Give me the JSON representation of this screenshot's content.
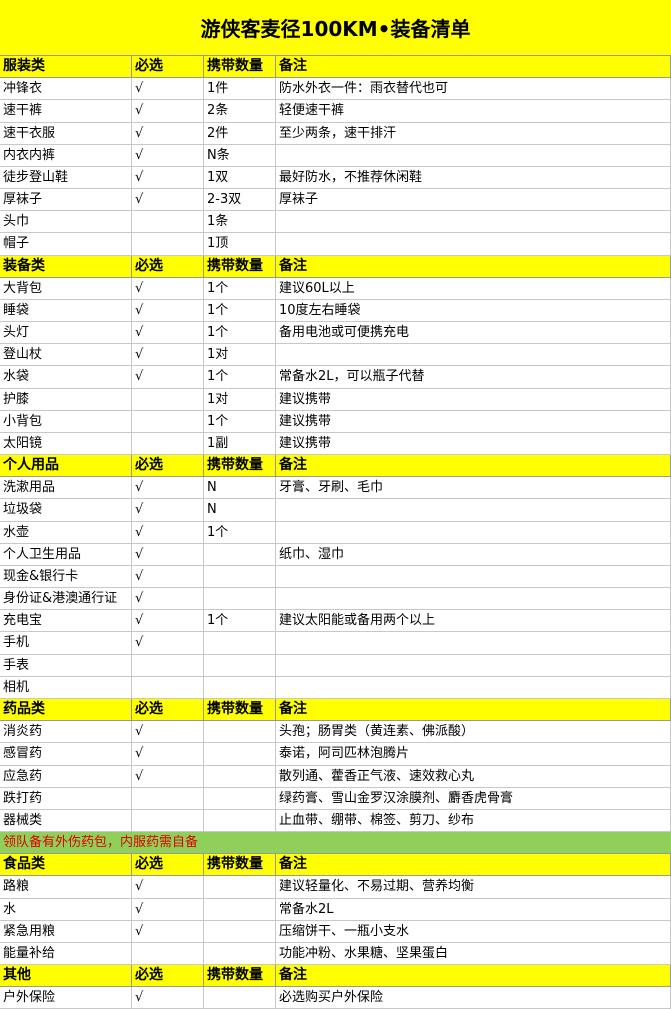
{
  "title": "游侠客麦径100KM•装备清单",
  "sections": [
    {
      "header": [
        "服装类",
        "必选",
        "携带数量",
        "备注"
      ],
      "rows": [
        [
          "冲锋衣",
          "√",
          "1件",
          "防水外衣一件：雨衣替代也可"
        ],
        [
          "速干裤",
          "√",
          "2条",
          "轻便速干裤"
        ],
        [
          "速干衣服",
          "√",
          "2件",
          "至少两条，速干排汗"
        ],
        [
          "内衣内裤",
          "√",
          "N条",
          null
        ],
        [
          "徒步登山鞋",
          "√",
          "1双",
          "最好防水，不推荐休闲鞋"
        ],
        [
          "厚袜子",
          "√",
          "2-3双",
          "厚袜子"
        ],
        [
          "头巾",
          null,
          "1条",
          null
        ],
        [
          "帽子",
          null,
          "1顶",
          null
        ]
      ]
    },
    {
      "header": [
        "装备类",
        "必选",
        "携带数量",
        "备注"
      ],
      "rows": [
        [
          "大背包",
          "√",
          "1个",
          "建议60L以上"
        ],
        [
          "睡袋",
          "√",
          "1个",
          "10度左右睡袋"
        ],
        [
          "头灯",
          "√",
          "1个",
          "备用电池或可便携充电"
        ],
        [
          "登山杖",
          "√",
          "1对",
          null
        ],
        [
          "水袋",
          "√",
          "1个",
          "常备水2L，可以瓶子代替"
        ],
        [
          "护膝",
          null,
          "1对",
          "建议携带"
        ],
        [
          "小背包",
          null,
          "1个",
          "建议携带"
        ],
        [
          "太阳镜",
          null,
          "1副",
          "建议携带"
        ]
      ]
    },
    {
      "header": [
        "个人用品",
        "必选",
        "携带数量",
        "备注"
      ],
      "rows": [
        [
          "洗漱用品",
          "√",
          "N",
          "牙膏、牙刷、毛巾"
        ],
        [
          "垃圾袋",
          "√",
          "N",
          null
        ],
        [
          "水壶",
          "√",
          "1个",
          null
        ],
        [
          "个人卫生用品",
          "√",
          null,
          "纸巾、湿巾"
        ],
        [
          "现金&银行卡",
          "√",
          null,
          null
        ],
        [
          "身份证&港澳通行证",
          "√",
          null,
          null
        ],
        [
          "充电宝",
          "√",
          "1个",
          "建议太阳能或备用两个以上"
        ],
        [
          "手机",
          "√",
          null,
          null
        ],
        [
          "手表",
          null,
          null,
          null
        ],
        [
          "相机",
          null,
          null,
          null
        ]
      ]
    },
    {
      "header": [
        "药品类",
        "必选",
        "携带数量",
        "备注"
      ],
      "rows": [
        [
          "消炎药",
          "√",
          null,
          "头孢；肠胃类（黄连素、佛派酸）"
        ],
        [
          "感冒药",
          "√",
          null,
          "泰诺，阿司匹林泡腾片"
        ],
        [
          "应急药",
          "√",
          null,
          "散列通、藿香正气液、速效救心丸"
        ],
        [
          "跌打药",
          null,
          null,
          "绿药膏、雪山金罗汉涂膜剂、麝香虎骨膏"
        ],
        [
          "器械类",
          null,
          null,
          "止血带、绷带、棉签、剪刀、纱布"
        ]
      ],
      "note": "领队备有外伤药包，内服药需自备"
    },
    {
      "header": [
        "食品类",
        "必选",
        "携带数量",
        "备注"
      ],
      "rows": [
        [
          "路粮",
          "√",
          null,
          "建议轻量化、不易过期、营养均衡"
        ],
        [
          "水",
          "√",
          null,
          "常备水2L"
        ],
        [
          "紧急用粮",
          "√",
          null,
          "压缩饼干、一瓶小支水"
        ],
        [
          "能量补给",
          null,
          null,
          "功能冲粉、水果糖、坚果蛋白"
        ]
      ]
    },
    {
      "header": [
        "其他",
        "必选",
        "携带数量",
        "备注"
      ],
      "rows": [
        [
          "户外保险",
          "√",
          null,
          "必选购买户外保险"
        ]
      ]
    }
  ]
}
